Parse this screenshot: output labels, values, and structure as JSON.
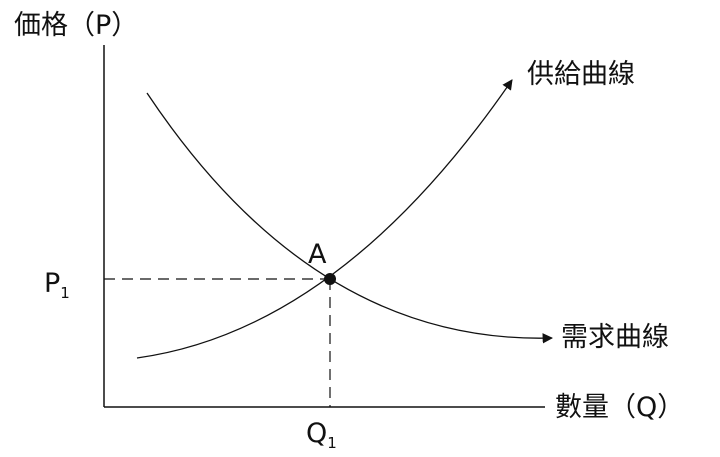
{
  "y_axis_label": "価格（P）",
  "x_axis_label": "數量（Q）",
  "supply_curve_label": "供給曲線",
  "demand_curve_label": "需求曲線",
  "equilibrium_point_label": "A",
  "price_label": {
    "main": "P",
    "sub": "1"
  },
  "quantity_label": {
    "main": "Q",
    "sub": "1"
  },
  "colors": {
    "line": "#111111",
    "background": "#ffffff"
  }
}
